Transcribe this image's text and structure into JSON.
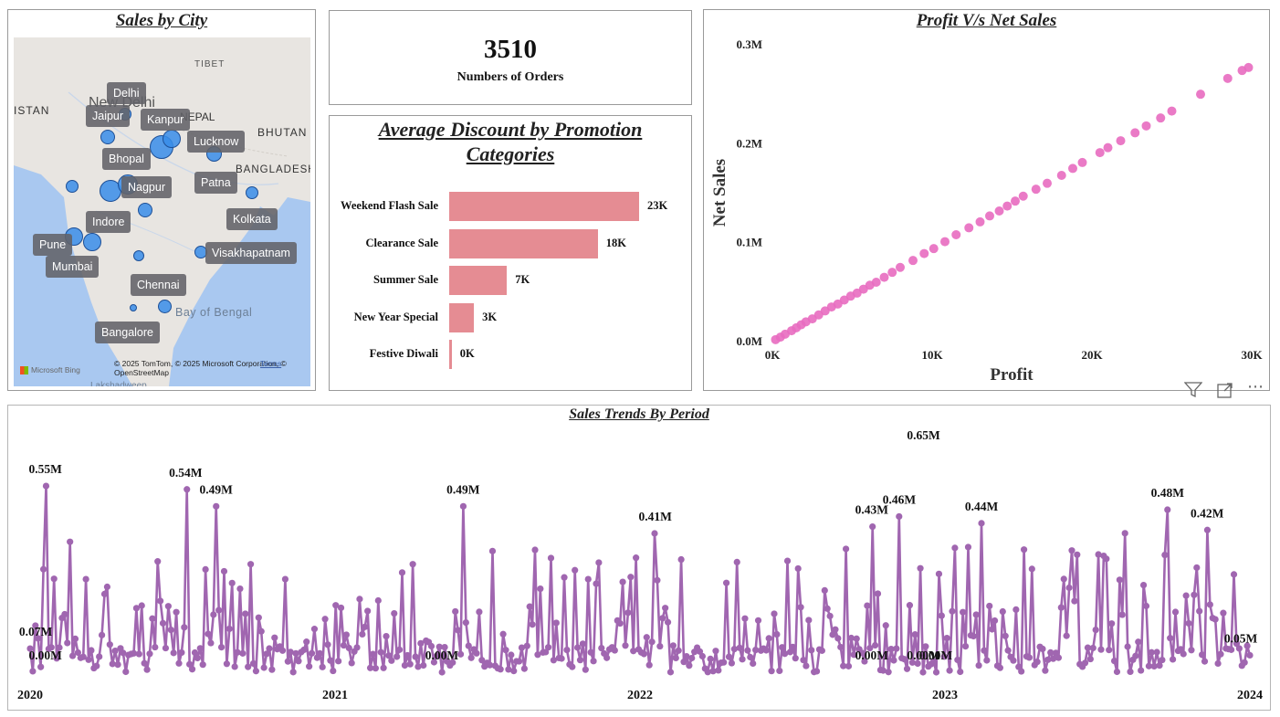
{
  "map": {
    "title": "Sales by City",
    "region_labels": [
      "TIBET",
      "NEPAL",
      "BHUTAN",
      "BANGLADESH",
      "ISTAN",
      "Bay of Bengal",
      "New Delhi",
      "Lakshadweep"
    ],
    "attribution": "© 2025 TomTom, © 2025 Microsoft Corporation, © OpenStreetMap",
    "terms_label": "Terms",
    "brand_label": "Microsoft Bing",
    "cities": [
      "Delhi",
      "Jaipur",
      "Kanpur",
      "Lucknow",
      "Bhopal",
      "Nagpur",
      "Patna",
      "Indore",
      "Kolkata",
      "Pune",
      "Visakhapatnam",
      "Mumbai",
      "Chennai",
      "Bangalore"
    ],
    "bubble_color": "#3a8de9"
  },
  "kpi": {
    "value": "3510",
    "label": "Numbers of Orders"
  },
  "discount_chart": {
    "title_line1": "Average Discount by Promotion",
    "title_line2": "Categories",
    "bar_color": "#e58c93",
    "items": [
      {
        "label": "Weekend Flash Sale",
        "value": 23,
        "display": "23K"
      },
      {
        "label": "Clearance Sale",
        "value": 18,
        "display": "18K"
      },
      {
        "label": "Summer Sale",
        "value": 7,
        "display": "7K"
      },
      {
        "label": "New Year Special",
        "value": 3,
        "display": "3K"
      },
      {
        "label": "Festive Diwali",
        "value": 0.3,
        "display": "0K"
      }
    ]
  },
  "chart_data": [
    {
      "type": "bar",
      "title": "Average Discount by Promotion Categories",
      "categories": [
        "Weekend Flash Sale",
        "Clearance Sale",
        "Summer Sale",
        "New Year Special",
        "Festive Diwali"
      ],
      "values": [
        23000,
        18000,
        7000,
        3000,
        300
      ],
      "orientation": "horizontal"
    },
    {
      "type": "scatter",
      "title": "Profit V/s Net Sales",
      "xlabel": "Profit",
      "ylabel": "Net Sales",
      "xlim": [
        0,
        30000
      ],
      "ylim": [
        0,
        300000
      ],
      "x_ticks": [
        "0K",
        "10K",
        "20K",
        "30K"
      ],
      "y_ticks": [
        "0.0M",
        "0.1M",
        "0.2M",
        "0.3M"
      ],
      "color": "#e86cc0",
      "points": [
        [
          200,
          2000
        ],
        [
          500,
          4500
        ],
        [
          800,
          7500
        ],
        [
          1200,
          11000
        ],
        [
          1500,
          14000
        ],
        [
          1800,
          17000
        ],
        [
          2100,
          20000
        ],
        [
          2500,
          23000
        ],
        [
          2900,
          27000
        ],
        [
          3300,
          31000
        ],
        [
          3700,
          35000
        ],
        [
          4100,
          38000
        ],
        [
          4500,
          42000
        ],
        [
          4900,
          46000
        ],
        [
          5300,
          49000
        ],
        [
          5700,
          53000
        ],
        [
          6100,
          57000
        ],
        [
          6500,
          60000
        ],
        [
          7000,
          65000
        ],
        [
          7500,
          70000
        ],
        [
          8000,
          75000
        ],
        [
          8800,
          82000
        ],
        [
          9500,
          89000
        ],
        [
          10100,
          94000
        ],
        [
          10800,
          101000
        ],
        [
          11500,
          108000
        ],
        [
          12300,
          115000
        ],
        [
          13000,
          121000
        ],
        [
          13600,
          127000
        ],
        [
          14200,
          132000
        ],
        [
          14700,
          137000
        ],
        [
          15200,
          142000
        ],
        [
          15700,
          147000
        ],
        [
          16500,
          154000
        ],
        [
          17200,
          160000
        ],
        [
          18100,
          168000
        ],
        [
          18800,
          175000
        ],
        [
          19400,
          181000
        ],
        [
          20500,
          191000
        ],
        [
          21000,
          196000
        ],
        [
          21800,
          203000
        ],
        [
          22700,
          211000
        ],
        [
          23400,
          218000
        ],
        [
          24300,
          226000
        ],
        [
          25000,
          233000
        ],
        [
          26800,
          250000
        ],
        [
          28500,
          266000
        ],
        [
          29400,
          274000
        ],
        [
          29800,
          277000
        ]
      ]
    },
    {
      "type": "line",
      "title": "Sales Trends By Period",
      "x_ticks": [
        "2020",
        "2021",
        "2022",
        "2023",
        "2024"
      ],
      "color": "#a066b0",
      "annotations": [
        {
          "x": 2020.0,
          "y": 0.07,
          "label": "0.07M"
        },
        {
          "x": 2020.05,
          "y": 0.0,
          "label": "0.00M"
        },
        {
          "x": 2020.05,
          "y": 0.55,
          "label": "0.55M"
        },
        {
          "x": 2020.51,
          "y": 0.54,
          "label": "0.54M"
        },
        {
          "x": 2020.61,
          "y": 0.49,
          "label": "0.49M"
        },
        {
          "x": 2021.35,
          "y": 0.0,
          "label": "0.00M"
        },
        {
          "x": 2021.42,
          "y": 0.49,
          "label": "0.49M"
        },
        {
          "x": 2022.05,
          "y": 0.41,
          "label": "0.41M"
        },
        {
          "x": 2022.76,
          "y": 0.0,
          "label": "0.00M"
        },
        {
          "x": 2022.76,
          "y": 0.43,
          "label": "0.43M"
        },
        {
          "x": 2022.85,
          "y": 0.46,
          "label": "0.46M"
        },
        {
          "x": 2022.93,
          "y": 0.65,
          "label": "0.65M"
        },
        {
          "x": 2022.93,
          "y": 0.0,
          "label": "0.00M"
        },
        {
          "x": 2022.97,
          "y": 0.0,
          "label": "0.00M"
        },
        {
          "x": 2023.12,
          "y": 0.44,
          "label": "0.44M"
        },
        {
          "x": 2023.73,
          "y": 0.48,
          "label": "0.48M"
        },
        {
          "x": 2023.86,
          "y": 0.42,
          "label": "0.42M"
        },
        {
          "x": 2024.0,
          "y": 0.05,
          "label": "0.05M"
        }
      ]
    }
  ],
  "toolbar": {
    "filter_icon": "filter-icon",
    "focus_icon": "focus-mode-icon",
    "more_icon": "more-options-icon"
  }
}
